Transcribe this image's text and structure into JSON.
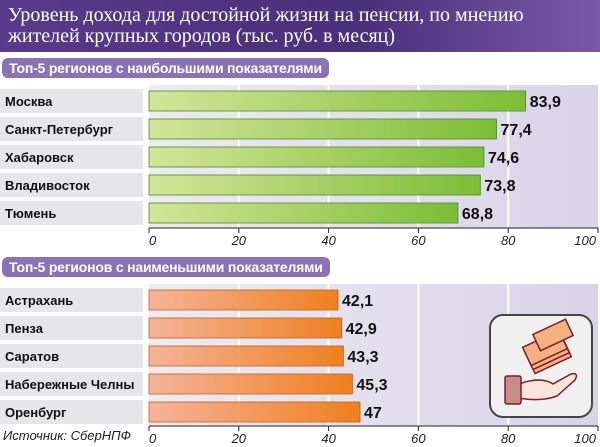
{
  "title": "Уровень дохода для достойной жизни на пенсии, по мнению жителей крупных городов (тыс. руб. в месяц)",
  "source": "Источник: СберНПФ",
  "colors": {
    "title_bg": "#4a2f7a",
    "pill": "#8a72b6",
    "top_bar": "#8cc63f",
    "bottom_bar": "#f08a30"
  },
  "icon": "hand-with-ruble-banknotes-icon",
  "chart_data": [
    {
      "type": "bar",
      "orientation": "horizontal",
      "title": "Топ-5 регионов с наибольшими показателями",
      "categories": [
        "Москва",
        "Санкт-Петербург",
        "Хабаровск",
        "Владивосток",
        "Тюмень"
      ],
      "values": [
        83.9,
        77.4,
        74.6,
        73.8,
        68.8
      ],
      "labels": [
        "83,9",
        "77,4",
        "74,6",
        "73,8",
        "68,8"
      ],
      "xlim": [
        0,
        100
      ],
      "ticks": [
        "0",
        "20",
        "40",
        "60",
        "80",
        "100"
      ],
      "grid": true
    },
    {
      "type": "bar",
      "orientation": "horizontal",
      "title": "Топ-5 регионов с наименьшими показателями",
      "categories": [
        "Астрахань",
        "Пенза",
        "Саратов",
        "Набережные Челны",
        "Оренбург"
      ],
      "values": [
        42.1,
        42.9,
        43.3,
        45.3,
        47
      ],
      "labels": [
        "42,1",
        "42,9",
        "43,3",
        "45,3",
        "47"
      ],
      "xlim": [
        0,
        100
      ],
      "ticks": [
        "0",
        "20",
        "40",
        "60",
        "80",
        "100"
      ],
      "grid": true
    }
  ]
}
